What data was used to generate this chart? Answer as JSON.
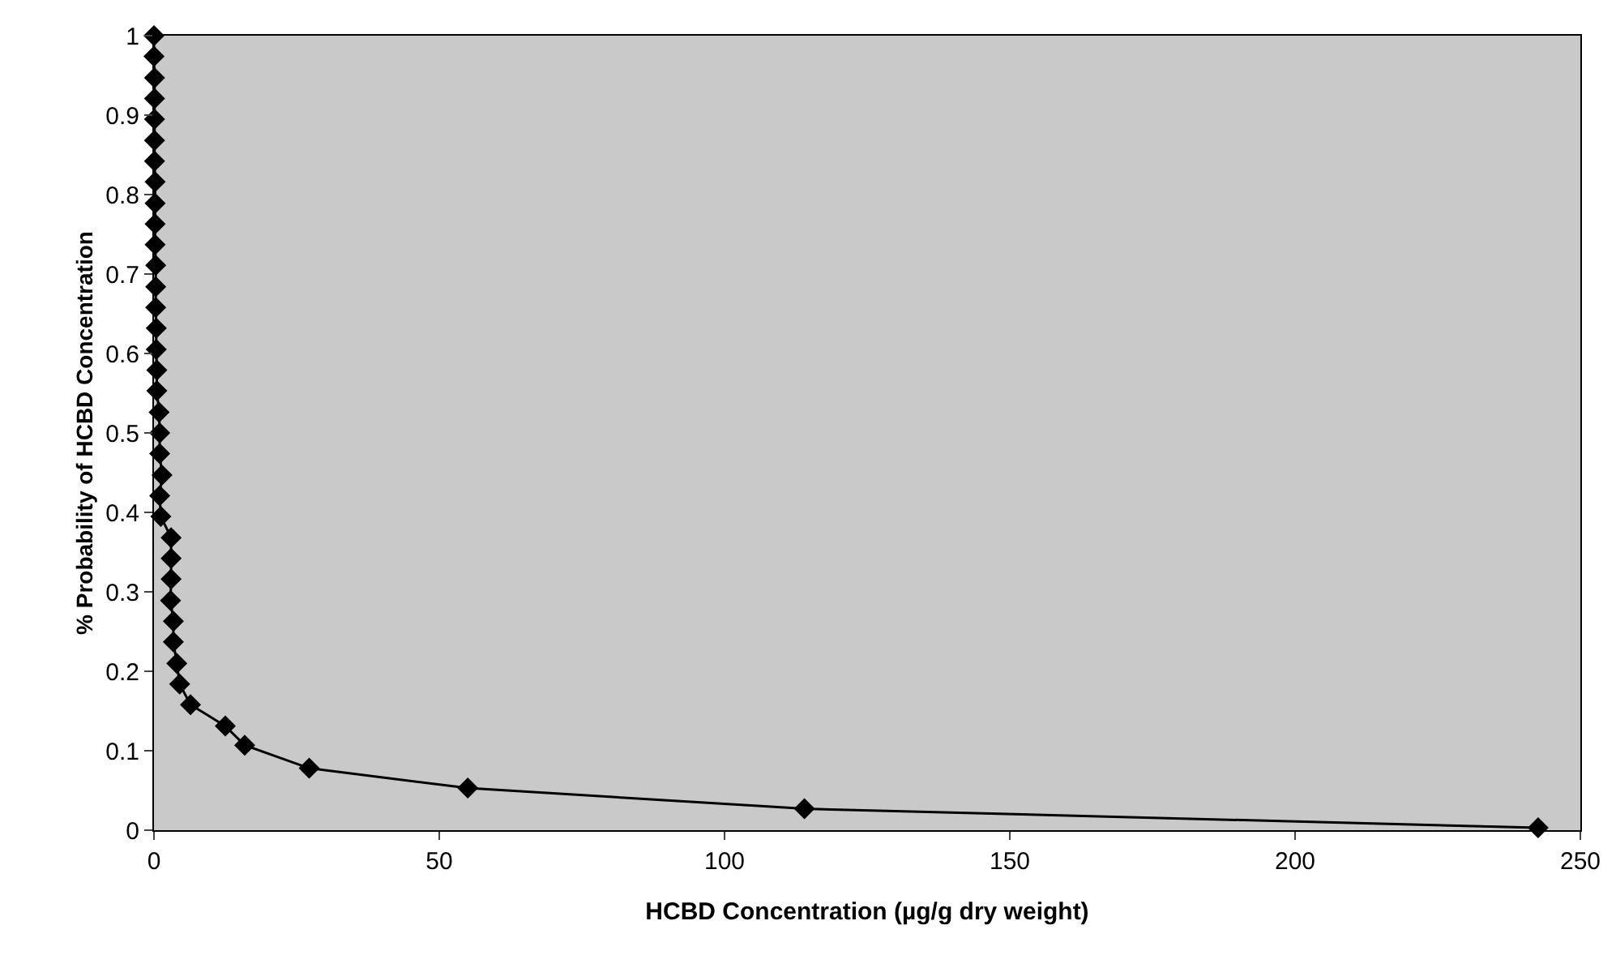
{
  "chart_data": {
    "type": "line",
    "xlabel": "HCBD Concentration (µg/g dry weight)",
    "ylabel": "% Probability of HCBD Concentration",
    "x": [
      0,
      0,
      0.1,
      0.1,
      0.1,
      0.1,
      0.1,
      0.2,
      0.2,
      0.2,
      0.2,
      0.3,
      0.3,
      0.3,
      0.4,
      0.4,
      0.5,
      0.5,
      0.9,
      1,
      1,
      1.4,
      1,
      1.2,
      3,
      3,
      3,
      2.9,
      3.4,
      3.4,
      4,
      4.5,
      6.4,
      12.5,
      15.9,
      27.2,
      55,
      114,
      242.6
    ],
    "series": [
      {
        "color": "#000000",
        "values": [
          1,
          0.974,
          0.947,
          0.921,
          0.895,
          0.868,
          0.842,
          0.816,
          0.789,
          0.763,
          0.737,
          0.711,
          0.684,
          0.658,
          0.632,
          0.605,
          0.579,
          0.553,
          0.526,
          0.5,
          0.474,
          0.447,
          0.421,
          0.395,
          0.368,
          0.342,
          0.316,
          0.289,
          0.263,
          0.237,
          0.21,
          0.184,
          0.158,
          0.131,
          0.107,
          0.078,
          0.053,
          0.027,
          0.003
        ]
      }
    ],
    "xlim": [
      0,
      250
    ],
    "xticks": [
      0,
      50,
      100,
      150,
      200,
      250
    ],
    "ylim": [
      0,
      1
    ],
    "yticks": [
      0,
      0.1,
      0.2,
      0.3,
      0.4,
      0.5,
      0.6,
      0.7,
      0.8,
      0.9,
      1
    ],
    "grid": false,
    "legend": false,
    "marker": "diamond",
    "line_style": "solid"
  }
}
